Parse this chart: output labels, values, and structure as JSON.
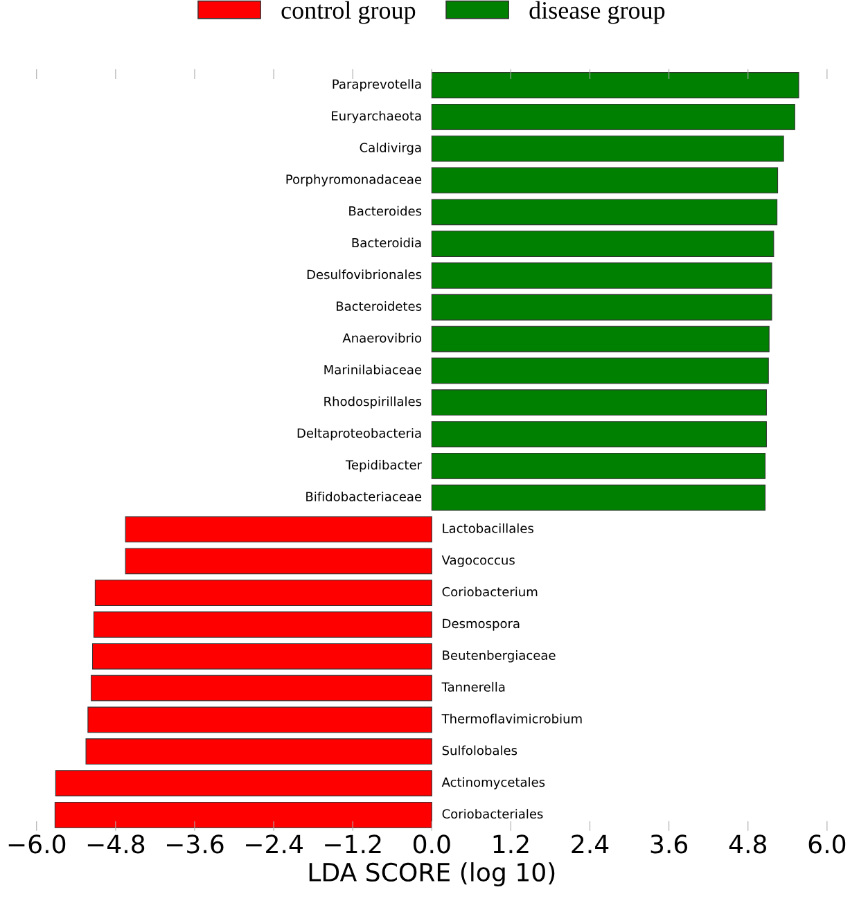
{
  "chart_data": {
    "type": "bar",
    "orientation": "horizontal",
    "xlabel": "LDA SCORE (log 10)",
    "categories": [
      "Paraprevotella",
      "Euryarchaeota",
      "Caldivirga",
      "Porphyromonadaceae",
      "Bacteroides",
      "Bacteroidia",
      "Desulfovibrionales",
      "Bacteroidetes",
      "Anaerovibrio",
      "Marinilabiaceae",
      "Rhodospirillales",
      "Deltaproteobacteria",
      "Tepidibacter",
      "Bifidobacteriaceae",
      "Lactobacillales",
      "Vagococcus",
      "Coriobacterium",
      "Desmospora",
      "Beutenbergiaceae",
      "Tannerella",
      "Thermoflavimicrobium",
      "Sulfolobales",
      "Actinomycetales",
      "Coriobacteriales"
    ],
    "series": [
      {
        "name": "control group",
        "color": "#ff0000",
        "values": [
          null,
          null,
          null,
          null,
          null,
          null,
          null,
          null,
          null,
          null,
          null,
          null,
          null,
          null,
          -4.65,
          -4.65,
          -5.11,
          -5.13,
          -5.15,
          -5.17,
          -5.22,
          -5.25,
          -5.71,
          -5.72
        ]
      },
      {
        "name": "disease group",
        "color": "#008000",
        "values": [
          5.57,
          5.51,
          5.34,
          5.25,
          5.24,
          5.19,
          5.16,
          5.16,
          5.12,
          5.11,
          5.08,
          5.08,
          5.06,
          5.06,
          null,
          null,
          null,
          null,
          null,
          null,
          null,
          null,
          null,
          null
        ]
      }
    ],
    "xlim": [
      -6.0,
      6.0
    ],
    "xticks": [
      {
        "value": -6.0,
        "label": "−6.0"
      },
      {
        "value": -4.8,
        "label": "−4.8"
      },
      {
        "value": -3.6,
        "label": "−3.6"
      },
      {
        "value": -2.4,
        "label": "−2.4"
      },
      {
        "value": -1.2,
        "label": "−1.2"
      },
      {
        "value": 0.0,
        "label": "0.0"
      },
      {
        "value": 1.2,
        "label": "1.2"
      },
      {
        "value": 2.4,
        "label": "2.4"
      },
      {
        "value": 3.6,
        "label": "3.6"
      },
      {
        "value": 4.8,
        "label": "4.8"
      },
      {
        "value": 6.0,
        "label": "6.0"
      }
    ],
    "tick_labels": "x",
    "grid": false,
    "legend": "top"
  }
}
